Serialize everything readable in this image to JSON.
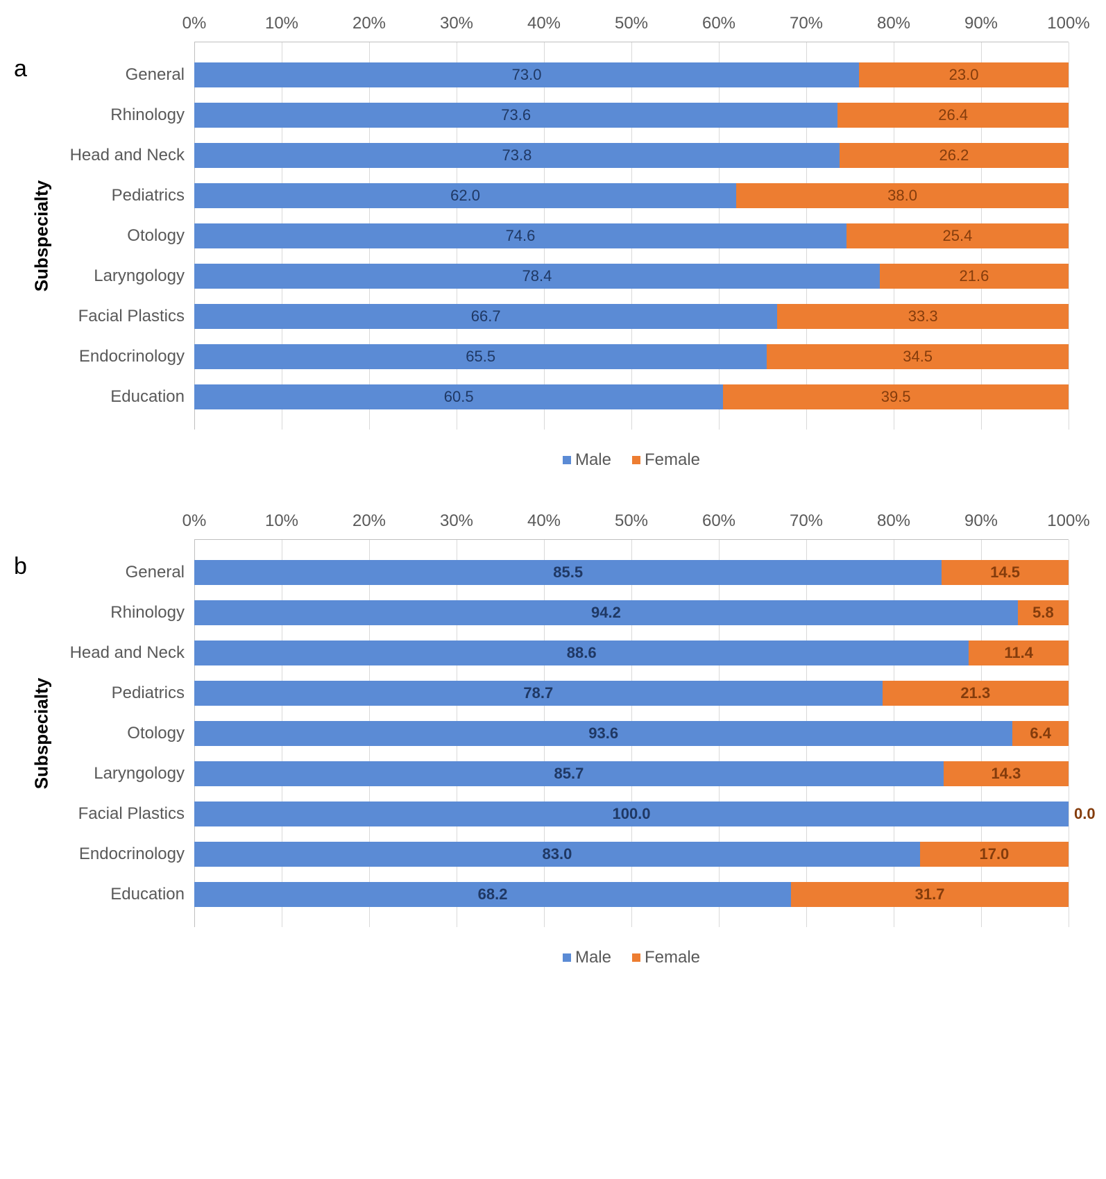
{
  "colors": {
    "male": "#5b8bd5",
    "female": "#ed7d31",
    "grid": "#d9d9d9",
    "axis": "#bfbfbf",
    "text": "#595959",
    "background": "#ffffff"
  },
  "x_axis": {
    "min": 0,
    "max": 100,
    "step": 10,
    "suffix": "%"
  },
  "y_axis_title": "Subspecialty",
  "legend": {
    "male": "Male",
    "female": "Female"
  },
  "panels": [
    {
      "label": "a",
      "bold_values": false,
      "rows": [
        {
          "category": "General",
          "male": 73.0,
          "female": 23.0,
          "female_outside": false
        },
        {
          "category": "Rhinology",
          "male": 73.6,
          "female": 26.4,
          "female_outside": false
        },
        {
          "category": "Head and Neck",
          "male": 73.8,
          "female": 26.2,
          "female_outside": false
        },
        {
          "category": "Pediatrics",
          "male": 62.0,
          "female": 38.0,
          "female_outside": false
        },
        {
          "category": "Otology",
          "male": 74.6,
          "female": 25.4,
          "female_outside": false
        },
        {
          "category": "Laryngology",
          "male": 78.4,
          "female": 21.6,
          "female_outside": false
        },
        {
          "category": "Facial Plastics",
          "male": 66.7,
          "female": 33.3,
          "female_outside": false
        },
        {
          "category": "Endocrinology",
          "male": 65.5,
          "female": 34.5,
          "female_outside": false
        },
        {
          "category": "Education",
          "male": 60.5,
          "female": 39.5,
          "female_outside": false
        }
      ]
    },
    {
      "label": "b",
      "bold_values": true,
      "rows": [
        {
          "category": "General",
          "male": 85.5,
          "female": 14.5,
          "female_outside": false
        },
        {
          "category": "Rhinology",
          "male": 94.2,
          "female": 5.8,
          "female_outside": false
        },
        {
          "category": "Head and Neck",
          "male": 88.6,
          "female": 11.4,
          "female_outside": false
        },
        {
          "category": "Pediatrics",
          "male": 78.7,
          "female": 21.3,
          "female_outside": false
        },
        {
          "category": "Otology",
          "male": 93.6,
          "female": 6.4,
          "female_outside": false
        },
        {
          "category": "Laryngology",
          "male": 85.7,
          "female": 14.3,
          "female_outside": false
        },
        {
          "category": "Facial Plastics",
          "male": 100.0,
          "female": 0.0,
          "female_outside": true
        },
        {
          "category": "Endocrinology",
          "male": 83.0,
          "female": 17.0,
          "female_outside": false
        },
        {
          "category": "Education",
          "male": 68.2,
          "female": 31.7,
          "female_outside": false
        }
      ]
    }
  ]
}
